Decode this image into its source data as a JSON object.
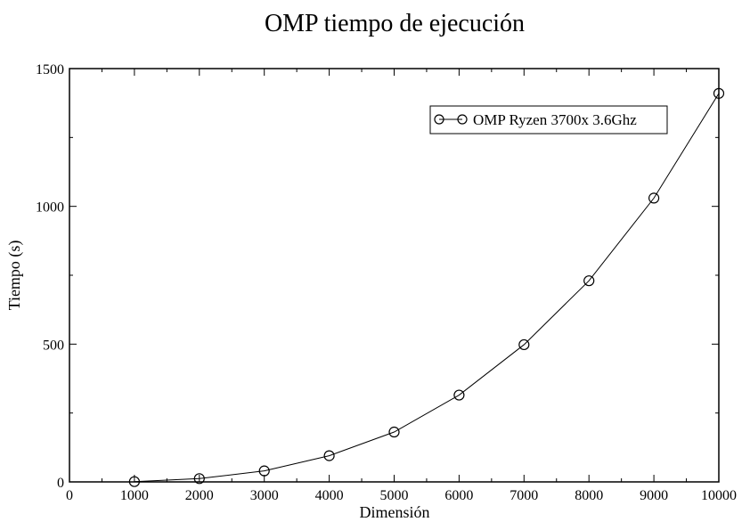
{
  "chart_data": {
    "type": "line",
    "title": "OMP tiempo de ejecución",
    "xlabel": "Dimensión",
    "ylabel": "Tiempo (s)",
    "xlim": [
      0,
      10000
    ],
    "ylim": [
      0,
      1500
    ],
    "x_ticks": [
      0,
      1000,
      2000,
      3000,
      4000,
      5000,
      6000,
      7000,
      8000,
      9000,
      10000
    ],
    "y_ticks": [
      0,
      500,
      1000,
      1500
    ],
    "grid": false,
    "legend_position": "top-right",
    "series": [
      {
        "name": "OMP Ryzen 3700x 3.6Ghz",
        "color": "#000000",
        "marker": "circle",
        "x": [
          1000,
          2000,
          3000,
          4000,
          5000,
          6000,
          7000,
          8000,
          9000,
          10000
        ],
        "y": [
          1,
          12,
          40,
          95,
          181,
          315,
          498,
          730,
          1030,
          1410
        ]
      }
    ]
  }
}
